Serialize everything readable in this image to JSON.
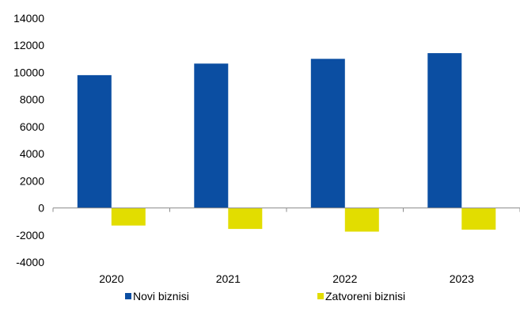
{
  "chart_data": {
    "type": "bar",
    "title": "",
    "xlabel": "",
    "ylabel": "",
    "categories": [
      "2020",
      "2021",
      "2022",
      "2023"
    ],
    "series": [
      {
        "name": "Novi biznisi",
        "color": "#0B4EA2",
        "values": [
          9800,
          10650,
          11000,
          11420
        ]
      },
      {
        "name": "Zatvoreni biznisi",
        "color": "#E2DD00",
        "values": [
          -1300,
          -1550,
          -1750,
          -1600
        ]
      }
    ],
    "ylim": [
      -4000,
      14000
    ],
    "yticks": [
      "14000",
      "12000",
      "10000",
      "8000",
      "6000",
      "4000",
      "2000",
      "0",
      "-2000",
      "-4000"
    ],
    "grid": false,
    "legend_position": "bottom"
  }
}
